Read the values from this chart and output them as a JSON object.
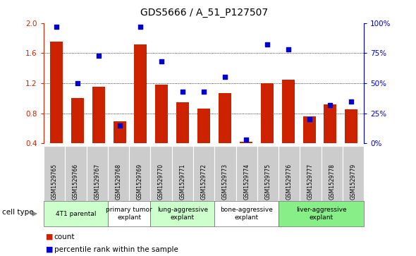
{
  "title": "GDS5666 / A_51_P127507",
  "samples": [
    "GSM1529765",
    "GSM1529766",
    "GSM1529767",
    "GSM1529768",
    "GSM1529769",
    "GSM1529770",
    "GSM1529771",
    "GSM1529772",
    "GSM1529773",
    "GSM1529774",
    "GSM1529775",
    "GSM1529776",
    "GSM1529777",
    "GSM1529778",
    "GSM1529779"
  ],
  "counts": [
    1.75,
    1.0,
    1.15,
    0.69,
    1.72,
    1.18,
    0.95,
    0.86,
    1.07,
    0.42,
    1.2,
    1.25,
    0.76,
    0.92,
    0.85
  ],
  "percentile_ranks": [
    97,
    50,
    73,
    15,
    97,
    68,
    43,
    43,
    55,
    3,
    82,
    78,
    20,
    32,
    35
  ],
  "ylim_left": [
    0.4,
    2.0
  ],
  "ylim_right": [
    0,
    100
  ],
  "yticks_left": [
    0.4,
    0.8,
    1.2,
    1.6,
    2.0
  ],
  "yticks_right": [
    0,
    25,
    50,
    75,
    100
  ],
  "ytick_labels_right": [
    "0%",
    "25%",
    "50%",
    "75%",
    "100%"
  ],
  "bar_color": "#cc2200",
  "dot_color": "#0000cc",
  "cell_groups": [
    {
      "label": "4T1 parental",
      "start": 0,
      "end": 2,
      "color": "#ccffcc"
    },
    {
      "label": "primary tumor\nexplant",
      "start": 3,
      "end": 4,
      "color": "#ffffff"
    },
    {
      "label": "lung-aggressive\nexplant",
      "start": 5,
      "end": 7,
      "color": "#ccffcc"
    },
    {
      "label": "bone-aggressive\nexplant",
      "start": 8,
      "end": 10,
      "color": "#ffffff"
    },
    {
      "label": "liver-aggressive\nexplant",
      "start": 11,
      "end": 14,
      "color": "#88ee88"
    }
  ],
  "cell_type_label": "cell type",
  "legend_count_label": "count",
  "legend_pct_label": "percentile rank within the sample",
  "bg_color": "#ffffff",
  "axis_color_left": "#cc2200",
  "axis_color_right": "#0000cc",
  "grid_dotted_vals": [
    0.8,
    1.2,
    1.6
  ],
  "bar_width": 0.6,
  "sample_box_color": "#cccccc",
  "tick_fontsize": 7.5,
  "xlabel_fontsize": 7.0,
  "title_fontsize": 10
}
